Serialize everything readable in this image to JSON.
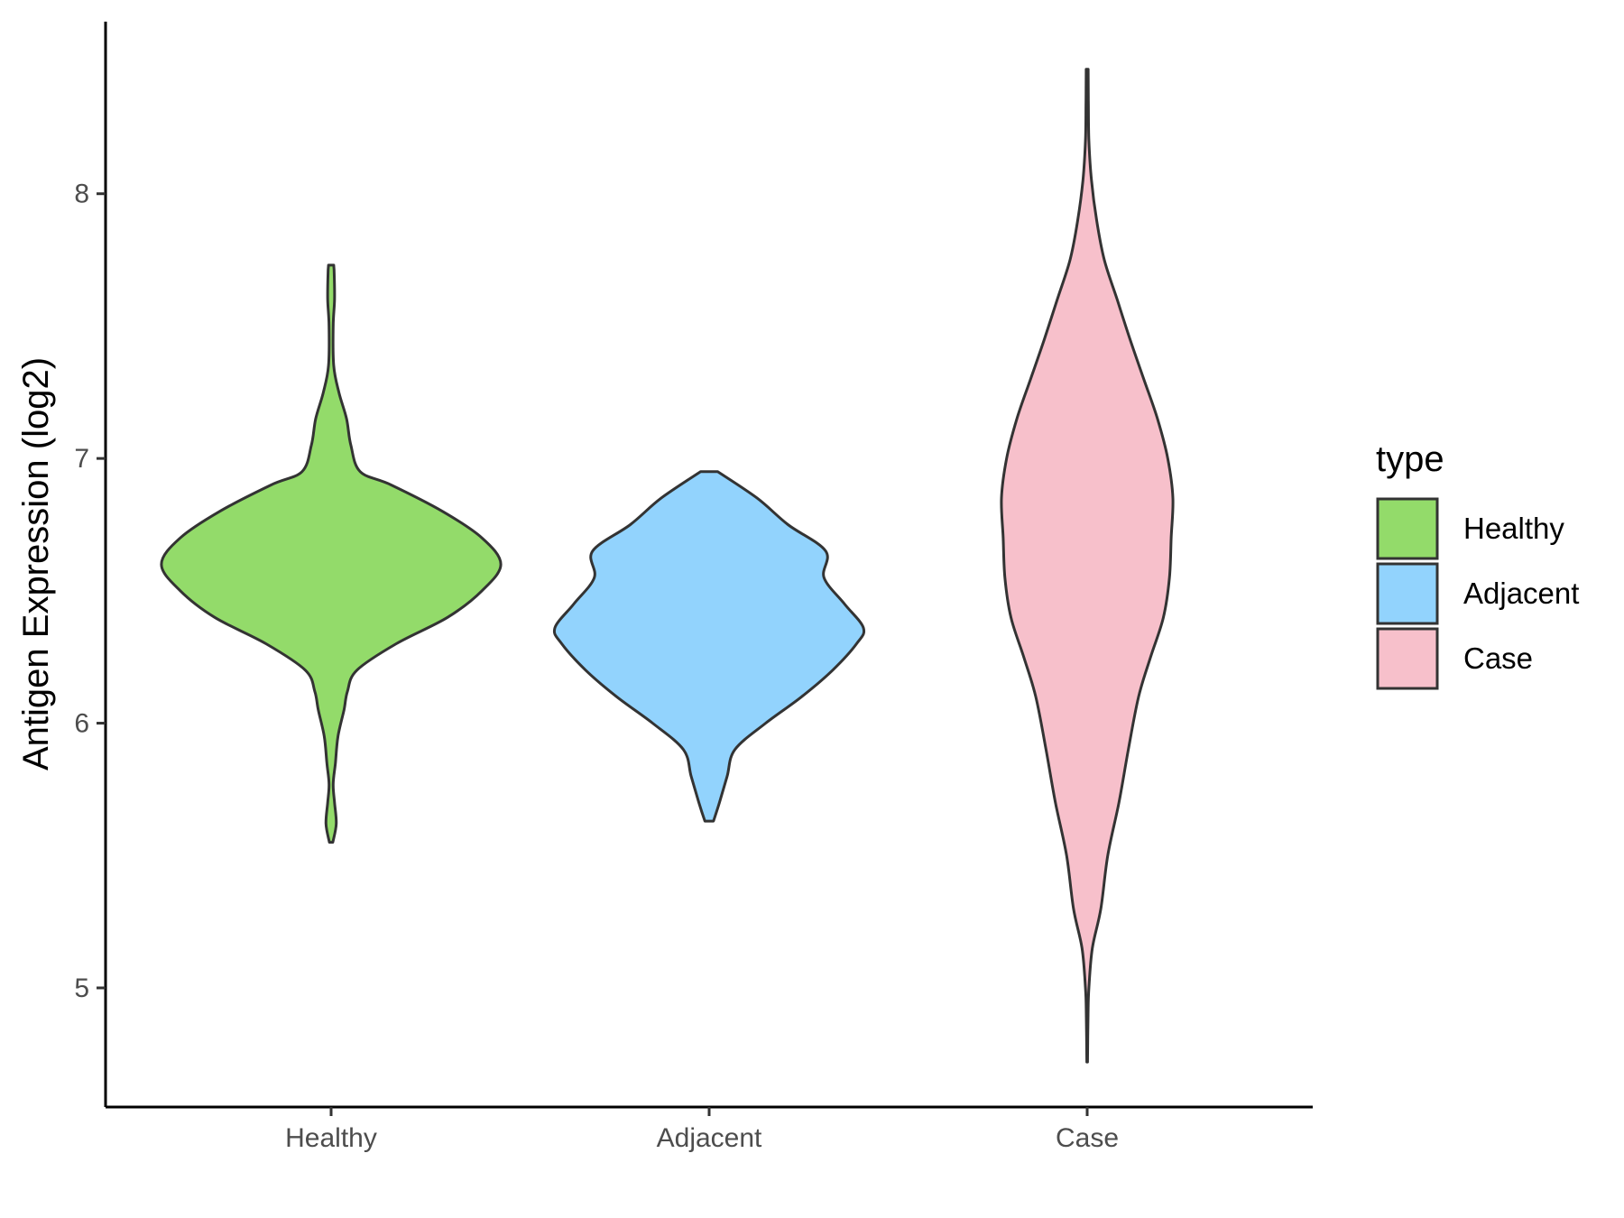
{
  "chart_data": {
    "type": "violin",
    "xlabel": "",
    "ylabel": "Antigen Expression (log2)",
    "ylim": [
      4.55,
      8.65
    ],
    "yticks": [
      5,
      6,
      7,
      8
    ],
    "categories": [
      "Healthy",
      "Adjacent",
      "Case"
    ],
    "grid": false,
    "legend": {
      "title": "type",
      "position": "right",
      "entries": [
        "Healthy",
        "Adjacent",
        "Case"
      ]
    },
    "series": [
      {
        "category": "Healthy",
        "color": "#93DB6A",
        "min": 5.55,
        "max": 7.73,
        "density_profile": [
          [
            5.55,
            0.01
          ],
          [
            5.62,
            0.03
          ],
          [
            5.7,
            0.02
          ],
          [
            5.77,
            0.012
          ],
          [
            5.85,
            0.025
          ],
          [
            5.95,
            0.04
          ],
          [
            6.05,
            0.075
          ],
          [
            6.12,
            0.095
          ],
          [
            6.2,
            0.15
          ],
          [
            6.3,
            0.38
          ],
          [
            6.4,
            0.68
          ],
          [
            6.5,
            0.88
          ],
          [
            6.6,
            0.99
          ],
          [
            6.7,
            0.88
          ],
          [
            6.8,
            0.65
          ],
          [
            6.9,
            0.35
          ],
          [
            6.95,
            0.17
          ],
          [
            7.05,
            0.115
          ],
          [
            7.15,
            0.09
          ],
          [
            7.25,
            0.045
          ],
          [
            7.35,
            0.015
          ],
          [
            7.5,
            0.012
          ],
          [
            7.6,
            0.02
          ],
          [
            7.7,
            0.018
          ],
          [
            7.73,
            0.015
          ]
        ]
      },
      {
        "category": "Adjacent",
        "color": "#92D3FD",
        "min": 5.63,
        "max": 6.95,
        "density_profile": [
          [
            5.63,
            0.025
          ],
          [
            5.7,
            0.06
          ],
          [
            5.8,
            0.105
          ],
          [
            5.9,
            0.15
          ],
          [
            6.0,
            0.33
          ],
          [
            6.1,
            0.54
          ],
          [
            6.2,
            0.72
          ],
          [
            6.3,
            0.86
          ],
          [
            6.36,
            0.9
          ],
          [
            6.45,
            0.79
          ],
          [
            6.55,
            0.67
          ],
          [
            6.65,
            0.68
          ],
          [
            6.75,
            0.46
          ],
          [
            6.85,
            0.28
          ],
          [
            6.95,
            0.05
          ]
        ]
      },
      {
        "category": "Case",
        "color": "#F7C0CB",
        "min": 4.72,
        "max": 8.47,
        "density_profile": [
          [
            4.72,
            0.002
          ],
          [
            4.9,
            0.005
          ],
          [
            5.0,
            0.01
          ],
          [
            5.15,
            0.03
          ],
          [
            5.3,
            0.08
          ],
          [
            5.5,
            0.12
          ],
          [
            5.7,
            0.185
          ],
          [
            5.9,
            0.24
          ],
          [
            6.1,
            0.3
          ],
          [
            6.25,
            0.37
          ],
          [
            6.4,
            0.445
          ],
          [
            6.55,
            0.48
          ],
          [
            6.7,
            0.49
          ],
          [
            6.85,
            0.5
          ],
          [
            7.0,
            0.47
          ],
          [
            7.15,
            0.41
          ],
          [
            7.3,
            0.33
          ],
          [
            7.45,
            0.25
          ],
          [
            7.6,
            0.175
          ],
          [
            7.75,
            0.1
          ],
          [
            7.9,
            0.055
          ],
          [
            8.05,
            0.025
          ],
          [
            8.2,
            0.01
          ],
          [
            8.35,
            0.007
          ],
          [
            8.47,
            0.006
          ]
        ]
      }
    ]
  }
}
